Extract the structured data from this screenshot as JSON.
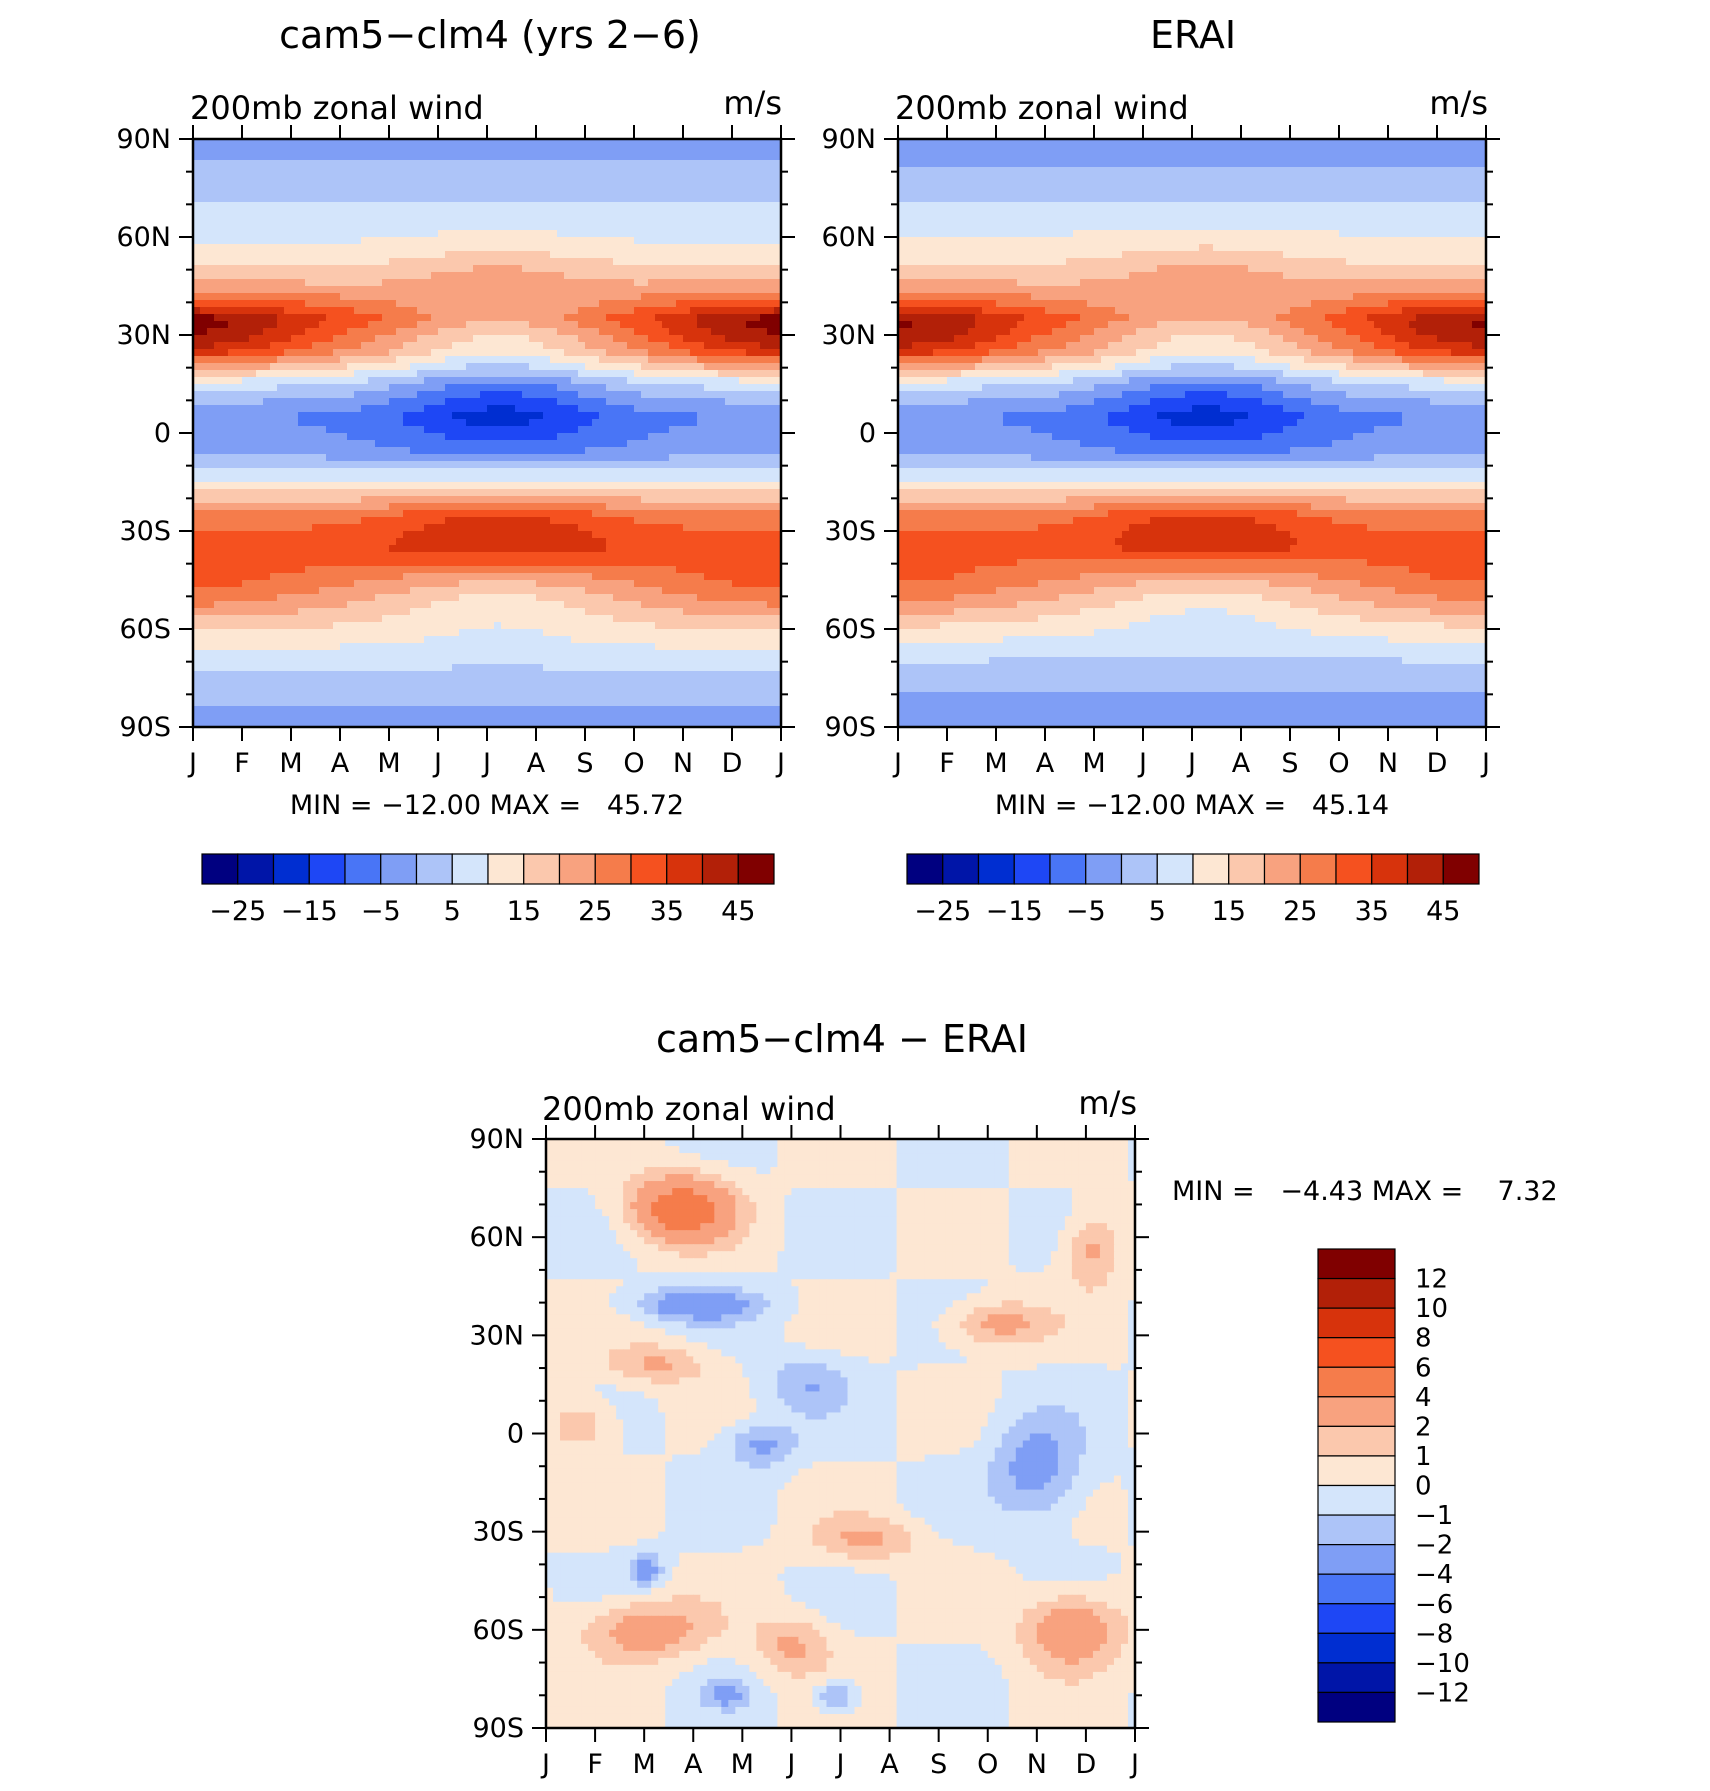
{
  "chart_data": [
    {
      "type": "heatmap",
      "title": "cam5−clm4 (yrs 2−6)",
      "subtitle_left": "200mb zonal wind",
      "subtitle_right": "m/s",
      "x_tick_labels": [
        "J",
        "F",
        "M",
        "A",
        "M",
        "J",
        "J",
        "A",
        "S",
        "O",
        "N",
        "D",
        "J"
      ],
      "y_tick_labels": [
        "90N",
        "60N",
        "30N",
        "0",
        "30S",
        "60S",
        "90S"
      ],
      "xlabel": "",
      "ylabel": "",
      "ylim": [
        -90,
        90
      ],
      "stats": "MIN = −12.00 MAX =   45.72",
      "colorbar_orientation": "horizontal",
      "colorbar_labels": [
        "−25",
        "−15",
        "−5",
        "5",
        "15",
        "25",
        "35",
        "45"
      ],
      "colorbar_levels": [
        -25,
        -20,
        -15,
        -10,
        -5,
        0,
        5,
        10,
        15,
        20,
        25,
        30,
        35,
        40,
        45
      ],
      "zonal_profile": {
        "lat": [
          -90,
          -75,
          -60,
          -45,
          -35,
          -25,
          -15,
          -5,
          5,
          15,
          25,
          35,
          45,
          55,
          65,
          75,
          90
        ],
        "u": [
          -2,
          3,
          14,
          26,
          33,
          27,
          10,
          -3,
          -5,
          5,
          24,
          33,
          20,
          11,
          7,
          3,
          -2
        ]
      }
    },
    {
      "type": "heatmap",
      "title": "ERAI",
      "subtitle_left": "200mb zonal wind",
      "subtitle_right": "m/s",
      "x_tick_labels": [
        "J",
        "F",
        "M",
        "A",
        "M",
        "J",
        "J",
        "A",
        "S",
        "O",
        "N",
        "D",
        "J"
      ],
      "y_tick_labels": [
        "90N",
        "60N",
        "30N",
        "0",
        "30S",
        "60S",
        "90S"
      ],
      "xlabel": "",
      "ylabel": "",
      "ylim": [
        -90,
        90
      ],
      "stats": "MIN = −12.00 MAX =   45.14",
      "colorbar_orientation": "horizontal",
      "colorbar_labels": [
        "−25",
        "−15",
        "−5",
        "5",
        "15",
        "25",
        "35",
        "45"
      ],
      "colorbar_levels": [
        -25,
        -20,
        -15,
        -10,
        -5,
        0,
        5,
        10,
        15,
        20,
        25,
        30,
        35,
        40,
        45
      ],
      "zonal_profile": {
        "lat": [
          -90,
          -75,
          -60,
          -45,
          -35,
          -25,
          -15,
          -5,
          5,
          15,
          25,
          35,
          45,
          55,
          65,
          75,
          90
        ],
        "u": [
          -3,
          1,
          12,
          25,
          32,
          27,
          10,
          -3,
          -5,
          5,
          24,
          32,
          20,
          12,
          8,
          2,
          -3
        ]
      }
    },
    {
      "type": "heatmap",
      "title": "cam5−clm4 − ERAI",
      "subtitle_left": "200mb zonal wind",
      "subtitle_right": "m/s",
      "x_tick_labels": [
        "J",
        "F",
        "M",
        "A",
        "M",
        "J",
        "J",
        "A",
        "S",
        "O",
        "N",
        "D",
        "J"
      ],
      "y_tick_labels": [
        "90N",
        "60N",
        "30N",
        "0",
        "30S",
        "60S",
        "90S"
      ],
      "xlabel": "",
      "ylabel": "",
      "ylim": [
        -90,
        90
      ],
      "stats": "MIN =   −4.43 MAX =    7.32",
      "colorbar_orientation": "vertical",
      "colorbar_labels": [
        "12",
        "10",
        "8",
        "6",
        "4",
        "2",
        "1",
        "0",
        "−1",
        "−2",
        "−4",
        "−6",
        "−8",
        "−10",
        "−12"
      ],
      "colorbar_levels": [
        12,
        10,
        8,
        6,
        4,
        2,
        1,
        0,
        -1,
        -2,
        -4,
        -6,
        -8,
        -10,
        -12
      ]
    }
  ],
  "colors": {
    "scale16": [
      "#000080",
      "#0015a8",
      "#002ed1",
      "#1e47f5",
      "#4975f6",
      "#7f9ef5",
      "#adc4f8",
      "#d4e5fb",
      "#fde7d3",
      "#fbc8ad",
      "#f8a27f",
      "#f57c4b",
      "#f5511f",
      "#d7330c",
      "#b22008",
      "#800000"
    ]
  }
}
